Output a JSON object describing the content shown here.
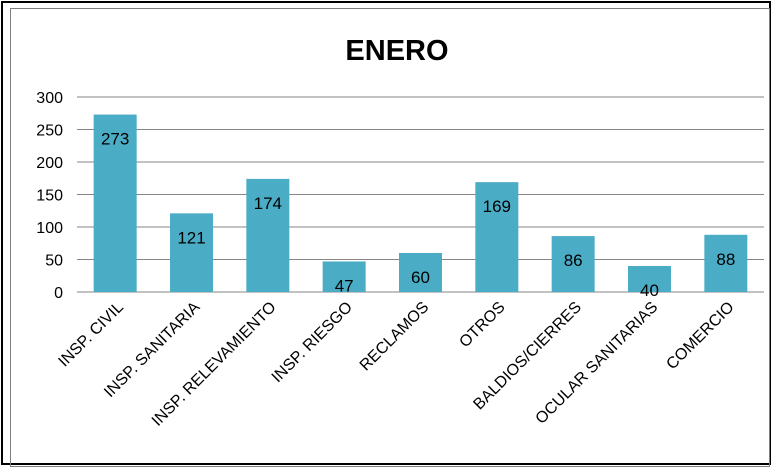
{
  "chart_data": {
    "type": "bar",
    "title": "ENERO",
    "xlabel": "",
    "ylabel": "",
    "categories": [
      "INSP. CIVIL",
      "INSP. SANITARIA",
      "INSP. RELEVAMIENTO",
      "INSP. RIESGO",
      "RECLAMOS",
      "OTROS",
      "BALDIOS/CIERRES",
      "OCULAR SANITARIAS",
      "COMERCIO"
    ],
    "values": [
      273,
      121,
      174,
      47,
      60,
      169,
      86,
      40,
      88
    ],
    "ylim": [
      0,
      300
    ],
    "yticks": [
      0,
      50,
      100,
      150,
      200,
      250,
      300
    ],
    "grid": true,
    "legend": "none",
    "bar_color": "#4BACC6",
    "grid_color": "#868686",
    "label_color": "#000000"
  }
}
